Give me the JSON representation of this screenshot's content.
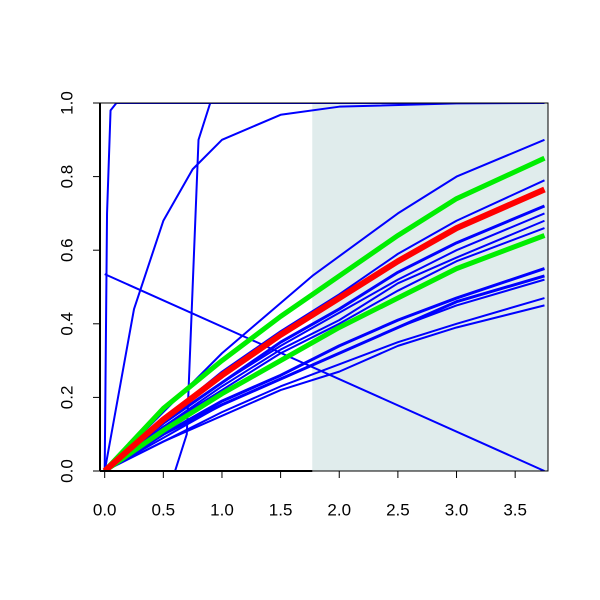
{
  "chart_data": {
    "type": "line",
    "xlim": [
      -0.04,
      3.78
    ],
    "ylim": [
      0,
      1
    ],
    "xticks": [
      {
        "value": 0,
        "label": "0.0"
      },
      {
        "value": 0.5,
        "label": "0.5"
      },
      {
        "value": 1,
        "label": "1.0"
      },
      {
        "value": 1.5,
        "label": "1.5"
      },
      {
        "value": 2,
        "label": "2.0"
      },
      {
        "value": 2.5,
        "label": "2.5"
      },
      {
        "value": 3,
        "label": "3.0"
      },
      {
        "value": 3.5,
        "label": "3.5"
      }
    ],
    "yticks": [
      {
        "value": 0,
        "label": "0.0"
      },
      {
        "value": 0.2,
        "label": "0.2"
      },
      {
        "value": 0.4,
        "label": "0.4"
      },
      {
        "value": 0.6,
        "label": "0.6"
      },
      {
        "value": 0.8,
        "label": "0.8"
      },
      {
        "value": 1,
        "label": "1.0"
      }
    ],
    "shade_from": 1.77,
    "shade_color": "#e0ecec",
    "series": [
      {
        "color": "#0000ff",
        "width": 2,
        "x": [
          0,
          0.02,
          0.05,
          0.1,
          3.75
        ],
        "values": [
          0,
          0.7,
          0.98,
          1,
          1
        ]
      },
      {
        "color": "#0000ff",
        "width": 2,
        "x": [
          0,
          0.6,
          0.7,
          0.75,
          0.8,
          0.9,
          3.75
        ],
        "values": [
          0,
          0,
          0.1,
          0.5,
          0.9,
          1,
          1
        ]
      },
      {
        "color": "#0000ff",
        "width": 2,
        "x": [
          0,
          0.25,
          0.5,
          0.75,
          1,
          1.5,
          2,
          3,
          3.75
        ],
        "values": [
          0,
          0.44,
          0.68,
          0.82,
          0.9,
          0.968,
          0.99,
          0.999,
          1
        ]
      },
      {
        "color": "#0000ff",
        "width": 2,
        "x": [
          0,
          3.75
        ],
        "values": [
          0.535,
          0
        ]
      },
      {
        "color": "#0000ff",
        "width": 2,
        "x": [
          0,
          1,
          1.77,
          2.5,
          3,
          3.75
        ],
        "values": [
          0,
          0.32,
          0.53,
          0.7,
          0.8,
          0.9
        ]
      },
      {
        "color": "#0000ff",
        "width": 2,
        "x": [
          0,
          0.5,
          1,
          1.5,
          2,
          2.5,
          3,
          3.75
        ],
        "values": [
          0,
          0.14,
          0.27,
          0.38,
          0.48,
          0.59,
          0.68,
          0.79
        ]
      },
      {
        "color": "#0000ff",
        "width": 3,
        "x": [
          0,
          0.5,
          1,
          1.5,
          2,
          2.5,
          3,
          3.75
        ],
        "values": [
          0,
          0.13,
          0.24,
          0.35,
          0.44,
          0.54,
          0.62,
          0.72
        ]
      },
      {
        "color": "#0000ff",
        "width": 2,
        "x": [
          0,
          0.5,
          1,
          1.5,
          2,
          2.5,
          3,
          3.75
        ],
        "values": [
          0,
          0.13,
          0.24,
          0.34,
          0.43,
          0.52,
          0.6,
          0.7
        ]
      },
      {
        "color": "#0000ff",
        "width": 2,
        "x": [
          0,
          0.5,
          1,
          1.5,
          2,
          2.5,
          3,
          3.75
        ],
        "values": [
          0,
          0.12,
          0.23,
          0.33,
          0.41,
          0.51,
          0.58,
          0.68
        ]
      },
      {
        "color": "#0000ff",
        "width": 2,
        "x": [
          0,
          0.5,
          1,
          1.5,
          2,
          2.5,
          3,
          3.75
        ],
        "values": [
          0,
          0.12,
          0.22,
          0.32,
          0.4,
          0.49,
          0.57,
          0.66
        ]
      },
      {
        "color": "#0000ff",
        "width": 3,
        "x": [
          0,
          0.5,
          1,
          1.5,
          2,
          2.5,
          3,
          3.75
        ],
        "values": [
          0,
          0.1,
          0.19,
          0.26,
          0.34,
          0.41,
          0.47,
          0.55
        ]
      },
      {
        "color": "#0000ff",
        "width": 3,
        "x": [
          0,
          0.5,
          1,
          1.5,
          2,
          2.5,
          3,
          3.75
        ],
        "values": [
          0,
          0.1,
          0.18,
          0.25,
          0.32,
          0.39,
          0.46,
          0.53
        ]
      },
      {
        "color": "#0000ff",
        "width": 2,
        "x": [
          0,
          0.5,
          1,
          1.5,
          2,
          2.5,
          3,
          3.75
        ],
        "values": [
          0,
          0.09,
          0.18,
          0.25,
          0.32,
          0.39,
          0.45,
          0.52
        ]
      },
      {
        "color": "#0000ff",
        "width": 2,
        "x": [
          0,
          0.5,
          1,
          1.5,
          2,
          2.5,
          3,
          3.75
        ],
        "values": [
          0,
          0.08,
          0.16,
          0.23,
          0.29,
          0.35,
          0.4,
          0.47
        ]
      },
      {
        "color": "#0000ff",
        "width": 2,
        "x": [
          0,
          0.5,
          1,
          1.5,
          2,
          2.5,
          3,
          3.75
        ],
        "values": [
          0,
          0.08,
          0.15,
          0.22,
          0.27,
          0.34,
          0.39,
          0.45
        ]
      },
      {
        "color": "#00ee00",
        "width": 5,
        "x": [
          0,
          0.5,
          1,
          1.5,
          2,
          2.5,
          3,
          3.75
        ],
        "values": [
          0,
          0.11,
          0.21,
          0.3,
          0.39,
          0.47,
          0.55,
          0.64
        ]
      },
      {
        "color": "#00ee00",
        "width": 5,
        "x": [
          0,
          0.5,
          1,
          1.5,
          2,
          2.5,
          3,
          3.75
        ],
        "values": [
          0,
          0.17,
          0.3,
          0.42,
          0.53,
          0.64,
          0.74,
          0.85
        ]
      },
      {
        "color": "#ff0000",
        "width": 6,
        "x": [
          0,
          0.5,
          1,
          1.5,
          2,
          2.5,
          3,
          3.75
        ],
        "values": [
          0,
          0.14,
          0.26,
          0.37,
          0.47,
          0.57,
          0.66,
          0.765
        ]
      }
    ]
  }
}
